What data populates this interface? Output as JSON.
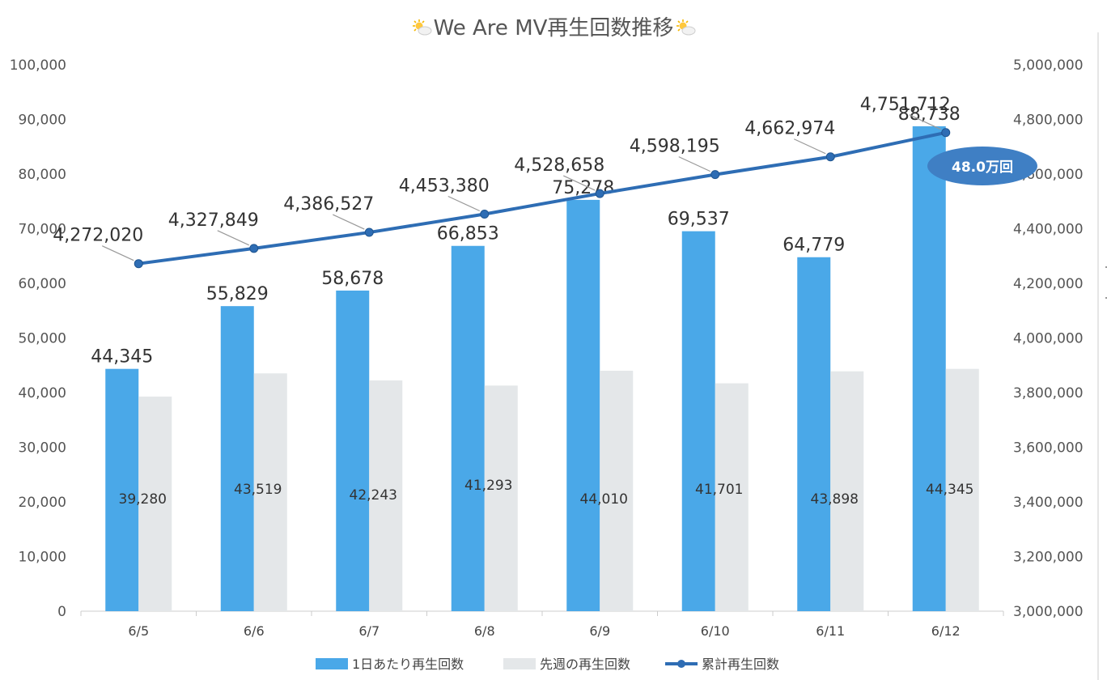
{
  "chart_data": {
    "type": "bar",
    "title": "We Are MV再生回数推移",
    "categories": [
      "6/5",
      "6/6",
      "6/7",
      "6/8",
      "6/9",
      "6/10",
      "6/11",
      "6/12"
    ],
    "series": [
      {
        "name": "1日あたり再生回数",
        "kind": "bar",
        "axis": "left",
        "color": "#4aa8e8",
        "values": [
          44345,
          55829,
          58678,
          66853,
          75278,
          69537,
          64779,
          88738
        ],
        "labels": [
          "44,345",
          "55,829",
          "58,678",
          "66,853",
          "75,278",
          "69,537",
          "64,779",
          "88,738"
        ]
      },
      {
        "name": "先週の再生回数",
        "kind": "bar",
        "axis": "left",
        "color": "#e4e7e9",
        "values": [
          39280,
          43519,
          42243,
          41293,
          44010,
          41701,
          43898,
          44345
        ],
        "labels": [
          "39,280",
          "43,519",
          "42,243",
          "41,293",
          "44,010",
          "41,701",
          "43,898",
          "44,345"
        ]
      },
      {
        "name": "累計再生回数",
        "kind": "line",
        "axis": "right",
        "color": "#2e6db4",
        "values": [
          4272020,
          4327849,
          4386527,
          4453380,
          4528658,
          4598195,
          4662974,
          4751712
        ],
        "labels": [
          "4,272,020",
          "4,327,849",
          "4,386,527",
          "4,453,380",
          "4,528,658",
          "4,598,195",
          "4,662,974",
          "4,751,712"
        ]
      }
    ],
    "left_axis": {
      "ylim": [
        0,
        100000
      ],
      "ticks": [
        "0",
        "10,000",
        "20,000",
        "30,000",
        "40,000",
        "50,000",
        "60,000",
        "70,000",
        "80,000",
        "90,000",
        "100,000"
      ]
    },
    "right_axis": {
      "ylim": [
        3000000,
        5000000
      ],
      "ticks": [
        "3,000,000",
        "3,200,000",
        "3,400,000",
        "3,600,000",
        "3,800,000",
        "4,000,000",
        "4,200,000",
        "4,400,000",
        "4,600,000",
        "4,800,000",
        "5,000,000"
      ]
    },
    "grid": false,
    "legend_position": "bottom",
    "callout": {
      "text": "48.0万回",
      "color": "#3f7fc4"
    }
  }
}
